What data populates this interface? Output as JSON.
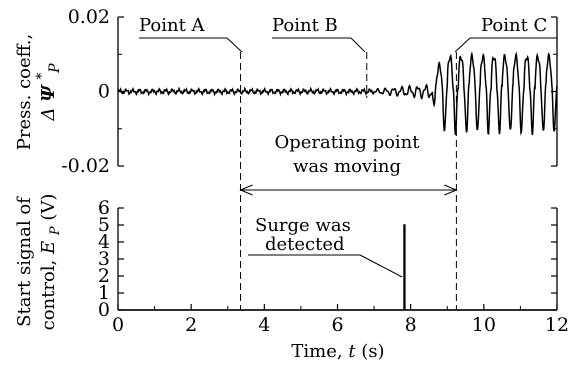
{
  "chart_data": [
    {
      "type": "line",
      "panel": "top",
      "ylabel_line1": "Press. coeff.,",
      "ylabel_line2_prefix": "Δ ",
      "ylabel_symbol": "Ψ",
      "ylabel_superscript": "*",
      "ylabel_subscript": "P",
      "xlim": [
        0,
        12
      ],
      "ylim": [
        -0.02,
        0.02
      ],
      "yticks": [
        -0.02,
        0,
        0.02
      ],
      "ytick_labels": [
        "-0.02",
        "0",
        "0.02"
      ],
      "grid": false,
      "series": [
        {
          "segments": [
            {
              "x_start": 0.0,
              "x_end": 7.0,
              "y_center": 0.0,
              "amplitude": 0.0008,
              "period": 0.18
            },
            {
              "x_start": 7.0,
              "x_end": 8.6,
              "y_center": 0.0,
              "amplitude": 0.0022,
              "period": 0.22
            },
            {
              "x_start": 8.6,
              "x_end": 12.0,
              "y_center": 0.0015,
              "amplitude": 0.0078,
              "period": 0.3
            }
          ]
        }
      ]
    },
    {
      "type": "line",
      "panel": "bottom",
      "ylabel_line1": "Start signal of",
      "ylabel_line2_prefix": "control, ",
      "ylabel_symbol": "E",
      "ylabel_subscript": "P",
      "ylabel_unit": " (V)",
      "xlabel_prefix": "Time, ",
      "xlabel_symbol": "t",
      "xlabel_unit": " (s)",
      "xlim": [
        0,
        12
      ],
      "ylim": [
        0,
        6
      ],
      "xticks": [
        0,
        2,
        4,
        6,
        8,
        10,
        12
      ],
      "xtick_labels": [
        "0",
        "2",
        "4",
        "6",
        "8",
        "10",
        "12"
      ],
      "yticks": [
        0,
        1,
        2,
        3,
        4,
        5,
        6
      ],
      "ytick_labels": [
        "0",
        "1",
        "2",
        "3",
        "4",
        "5",
        "6"
      ],
      "grid": false,
      "series": [
        {
          "x": [
            0,
            7.82,
            7.82,
            7.84,
            7.84,
            12
          ],
          "y": [
            0,
            0,
            5.0,
            5.0,
            0,
            0
          ]
        }
      ]
    }
  ],
  "annotations": {
    "point_a": {
      "label": "Point A",
      "x": 3.35
    },
    "point_b": {
      "label": "Point B",
      "x": 6.8
    },
    "point_c": {
      "label": "Point C",
      "x": 9.25
    },
    "moving_line1": "Operating point",
    "moving_line2": "was moving",
    "surge_line1": "Surge was",
    "surge_line2": "detected"
  }
}
